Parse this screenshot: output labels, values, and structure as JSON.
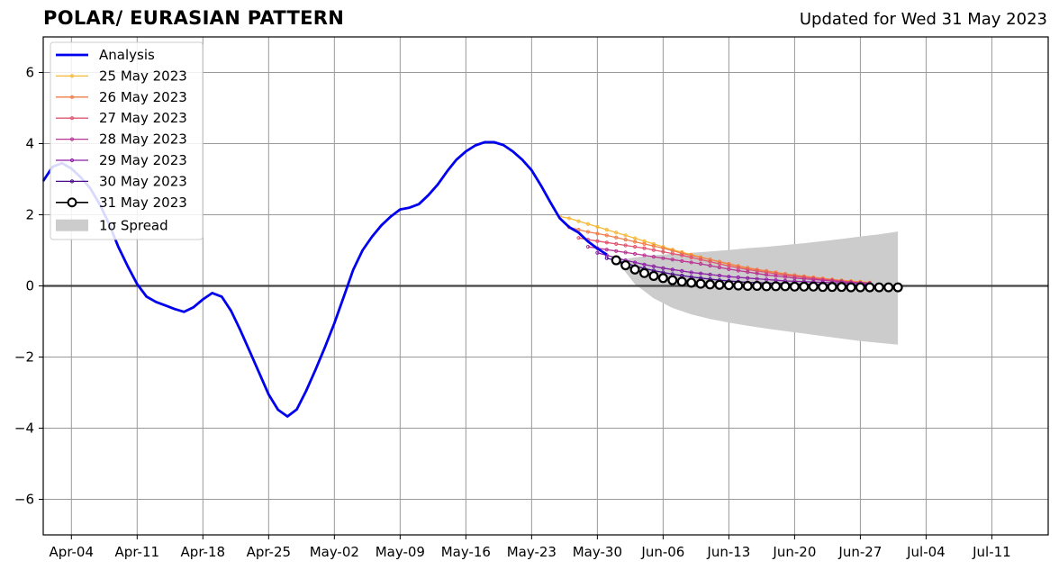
{
  "chart_data": {
    "type": "line",
    "title": "POLAR/ EURASIAN  PATTERN",
    "subtitle": "Updated for Wed 31 May 2023",
    "xlim": [
      "2023-04-01",
      "2023-07-17"
    ],
    "ylim": [
      -7,
      7
    ],
    "grid": true,
    "legend_position": "top-left",
    "x_ticks": [
      "2023-04-04",
      "2023-04-11",
      "2023-04-18",
      "2023-04-25",
      "2023-05-02",
      "2023-05-09",
      "2023-05-16",
      "2023-05-23",
      "2023-05-30",
      "2023-06-06",
      "2023-06-13",
      "2023-06-20",
      "2023-06-27",
      "2023-07-04",
      "2023-07-11"
    ],
    "x_tick_labels": [
      "Apr-04",
      "Apr-11",
      "Apr-18",
      "Apr-25",
      "May-02",
      "May-09",
      "May-16",
      "May-23",
      "May-30",
      "Jun-06",
      "Jun-13",
      "Jun-20",
      "Jun-27",
      "Jul-04",
      "Jul-11"
    ],
    "y_ticks": [
      -6,
      -4,
      -2,
      0,
      2,
      4,
      6
    ],
    "y_tick_labels": [
      "−6",
      "−4",
      "−2",
      "0",
      "2",
      "4",
      "6"
    ],
    "analysis": {
      "name": "Analysis",
      "color": "#0000ee",
      "points": [
        [
          "2023-04-01",
          2.95
        ],
        [
          "2023-04-02",
          3.35
        ],
        [
          "2023-04-03",
          3.45
        ],
        [
          "2023-04-04",
          3.3
        ],
        [
          "2023-04-05",
          3.05
        ],
        [
          "2023-04-06",
          2.75
        ],
        [
          "2023-04-07",
          2.3
        ],
        [
          "2023-04-08",
          1.75
        ],
        [
          "2023-04-09",
          1.1
        ],
        [
          "2023-04-10",
          0.55
        ],
        [
          "2023-04-11",
          0.05
        ],
        [
          "2023-04-12",
          -0.3
        ],
        [
          "2023-04-13",
          -0.45
        ],
        [
          "2023-04-14",
          -0.55
        ],
        [
          "2023-04-15",
          -0.65
        ],
        [
          "2023-04-16",
          -0.73
        ],
        [
          "2023-04-17",
          -0.6
        ],
        [
          "2023-04-18",
          -0.38
        ],
        [
          "2023-04-19",
          -0.2
        ],
        [
          "2023-04-20",
          -0.3
        ],
        [
          "2023-04-21",
          -0.7
        ],
        [
          "2023-04-22",
          -1.25
        ],
        [
          "2023-04-23",
          -1.85
        ],
        [
          "2023-04-24",
          -2.45
        ],
        [
          "2023-04-25",
          -3.05
        ],
        [
          "2023-04-26",
          -3.48
        ],
        [
          "2023-04-27",
          -3.67
        ],
        [
          "2023-04-28",
          -3.47
        ],
        [
          "2023-04-29",
          -2.95
        ],
        [
          "2023-04-30",
          -2.35
        ],
        [
          "2023-05-01",
          -1.72
        ],
        [
          "2023-05-02",
          -1.05
        ],
        [
          "2023-05-03",
          -0.3
        ],
        [
          "2023-05-04",
          0.45
        ],
        [
          "2023-05-05",
          1.0
        ],
        [
          "2023-05-06",
          1.38
        ],
        [
          "2023-05-07",
          1.7
        ],
        [
          "2023-05-08",
          1.95
        ],
        [
          "2023-05-09",
          2.15
        ],
        [
          "2023-05-10",
          2.2
        ],
        [
          "2023-05-11",
          2.3
        ],
        [
          "2023-05-12",
          2.55
        ],
        [
          "2023-05-13",
          2.85
        ],
        [
          "2023-05-14",
          3.22
        ],
        [
          "2023-05-15",
          3.55
        ],
        [
          "2023-05-16",
          3.78
        ],
        [
          "2023-05-17",
          3.95
        ],
        [
          "2023-05-18",
          4.04
        ],
        [
          "2023-05-19",
          4.04
        ],
        [
          "2023-05-20",
          3.96
        ],
        [
          "2023-05-21",
          3.78
        ],
        [
          "2023-05-22",
          3.55
        ],
        [
          "2023-05-23",
          3.25
        ],
        [
          "2023-05-24",
          2.82
        ],
        [
          "2023-05-25",
          2.35
        ],
        [
          "2023-05-26",
          1.9
        ],
        [
          "2023-05-27",
          1.65
        ],
        [
          "2023-05-28",
          1.5
        ],
        [
          "2023-05-29",
          1.25
        ],
        [
          "2023-05-30",
          1.05
        ],
        [
          "2023-05-31",
          0.88
        ]
      ]
    },
    "series": [
      {
        "name": "25 May 2023",
        "color": "#f5b937",
        "start": "2023-05-26",
        "values": [
          1.95,
          1.9,
          1.82,
          1.74,
          1.66,
          1.58,
          1.5,
          1.42,
          1.34,
          1.26,
          1.18,
          1.1,
          1.02,
          0.95,
          0.88,
          0.81,
          0.74,
          0.67,
          0.61,
          0.55,
          0.5,
          0.45,
          0.41,
          0.37,
          0.33,
          0.3,
          0.27,
          0.24,
          0.21,
          0.18,
          0.16,
          0.14,
          0.12,
          0.1
        ]
      },
      {
        "name": "26 May 2023",
        "color": "#f07d4a",
        "start": "2023-05-27",
        "values": [
          1.65,
          1.58,
          1.52,
          1.47,
          1.42,
          1.36,
          1.3,
          1.24,
          1.18,
          1.12,
          1.06,
          0.99,
          0.92,
          0.86,
          0.8,
          0.74,
          0.68,
          0.62,
          0.56,
          0.51,
          0.46,
          0.42,
          0.38,
          0.34,
          0.3,
          0.27,
          0.24,
          0.21,
          0.18,
          0.15,
          0.12,
          0.1,
          0.08
        ]
      },
      {
        "name": "27 May 2023",
        "color": "#e0546e",
        "start": "2023-05-28",
        "values": [
          1.35,
          1.3,
          1.26,
          1.22,
          1.18,
          1.14,
          1.1,
          1.06,
          1.01,
          0.96,
          0.91,
          0.86,
          0.8,
          0.74,
          0.68,
          0.62,
          0.56,
          0.51,
          0.46,
          0.42,
          0.38,
          0.34,
          0.3,
          0.27,
          0.24,
          0.21,
          0.18,
          0.16,
          0.14,
          0.12,
          0.1,
          0.08
        ]
      },
      {
        "name": "28 May 2023",
        "color": "#b93594",
        "start": "2023-05-29",
        "values": [
          1.1,
          1.06,
          1.02,
          0.98,
          0.94,
          0.9,
          0.86,
          0.82,
          0.78,
          0.74,
          0.7,
          0.66,
          0.62,
          0.57,
          0.52,
          0.47,
          0.43,
          0.39,
          0.35,
          0.31,
          0.28,
          0.25,
          0.22,
          0.2,
          0.18,
          0.16,
          0.14,
          0.12,
          0.1,
          0.09,
          0.08
        ]
      },
      {
        "name": "29 May 2023",
        "color": "#8c1fa6",
        "start": "2023-05-30",
        "values": [
          0.93,
          0.86,
          0.79,
          0.72,
          0.66,
          0.6,
          0.55,
          0.5,
          0.46,
          0.42,
          0.38,
          0.35,
          0.32,
          0.29,
          0.26,
          0.24,
          0.22,
          0.2,
          0.18,
          0.16,
          0.14,
          0.13,
          0.12,
          0.11,
          0.1,
          0.09,
          0.08,
          0.07,
          0.06,
          0.05
        ]
      },
      {
        "name": "30 May 2023",
        "color": "#4a0a8c",
        "start": "2023-05-31",
        "values": [
          0.78,
          0.72,
          0.64,
          0.56,
          0.49,
          0.43,
          0.38,
          0.33,
          0.29,
          0.25,
          0.22,
          0.19,
          0.16,
          0.14,
          0.12,
          0.1,
          0.09,
          0.08,
          0.07,
          0.06,
          0.05,
          0.05,
          0.04,
          0.04,
          0.03,
          0.03,
          0.02,
          0.02,
          0.02
        ]
      },
      {
        "name": "31 May 2023",
        "color": "#000000",
        "start": "2023-06-01",
        "marker": "open-circle",
        "values": [
          0.72,
          0.58,
          0.46,
          0.36,
          0.28,
          0.22,
          0.16,
          0.12,
          0.09,
          0.06,
          0.04,
          0.03,
          0.02,
          0.01,
          0.0,
          0.0,
          -0.01,
          -0.01,
          -0.01,
          -0.02,
          -0.02,
          -0.02,
          -0.03,
          -0.03,
          -0.03,
          -0.04,
          -0.04,
          -0.04,
          -0.04,
          -0.04,
          -0.04
        ]
      }
    ],
    "spread": {
      "name": "1σ Spread",
      "color": "#cccccc",
      "dates": [
        "2023-06-01",
        "2023-06-03",
        "2023-06-05",
        "2023-06-07",
        "2023-06-09",
        "2023-06-11",
        "2023-06-13",
        "2023-06-15",
        "2023-06-17",
        "2023-06-19",
        "2023-06-21",
        "2023-06-23",
        "2023-06-25",
        "2023-06-27",
        "2023-06-29",
        "2023-07-01"
      ],
      "upper": [
        0.72,
        0.8,
        0.86,
        0.9,
        0.93,
        0.97,
        1.01,
        1.06,
        1.1,
        1.15,
        1.2,
        1.26,
        1.32,
        1.39,
        1.45,
        1.53
      ],
      "lower": [
        0.72,
        0.05,
        -0.35,
        -0.62,
        -0.8,
        -0.93,
        -1.03,
        -1.12,
        -1.2,
        -1.27,
        -1.34,
        -1.41,
        -1.48,
        -1.55,
        -1.6,
        -1.65
      ]
    }
  }
}
